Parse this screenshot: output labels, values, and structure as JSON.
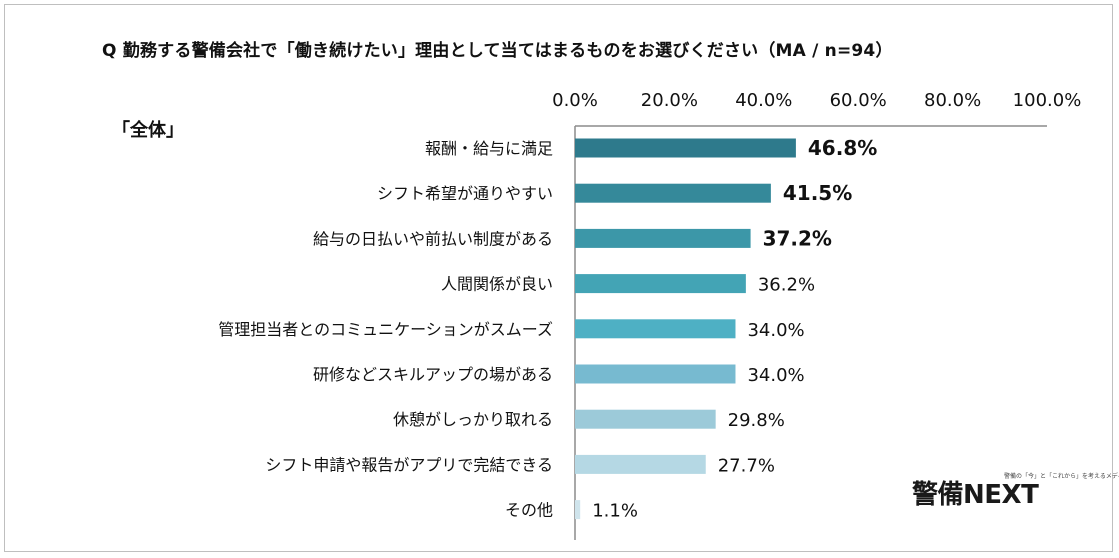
{
  "chart_data": {
    "type": "bar",
    "orientation": "horizontal",
    "title": "Q 勤務する警備会社で「働き続けたい」理由として当てはまるものをお選びください（MA / n=94）",
    "group_label": "「全体」",
    "categories": [
      "報酬・給与に満足",
      "シフト希望が通りやすい",
      "給与の日払いや前払い制度がある",
      "人間関係が良い",
      "管理担当者とのコミュニケーションがスムーズ",
      "研修などスキルアップの場がある",
      "休憩がしっかり取れる",
      "シフト申請や報告がアプリで完結できる",
      "その他"
    ],
    "values": [
      46.8,
      41.5,
      37.2,
      36.2,
      34.0,
      34.0,
      29.8,
      27.7,
      1.1
    ],
    "value_labels": [
      "46.8%",
      "41.5%",
      "37.2%",
      "36.2%",
      "34.0%",
      "34.0%",
      "29.8%",
      "27.7%",
      "1.1%"
    ],
    "bold_labels": [
      true,
      true,
      true,
      false,
      false,
      false,
      false,
      false,
      false
    ],
    "bar_colors": [
      "#2e7a8c",
      "#35899a",
      "#3c97a8",
      "#43a4b5",
      "#4eb0c4",
      "#77bad0",
      "#9ccad9",
      "#b5d8e4",
      "#cfe4ec"
    ],
    "xlim": [
      0,
      100
    ],
    "x_ticks": [
      "0.0%",
      "20.0%",
      "40.0%",
      "60.0%",
      "80.0%",
      "100.0%"
    ],
    "x_axis_position": "top",
    "grid": false,
    "legend": "none"
  },
  "logo": {
    "main": "警備NEXT",
    "tagline": "警備の「今」と「これから」を考えるメディア"
  }
}
